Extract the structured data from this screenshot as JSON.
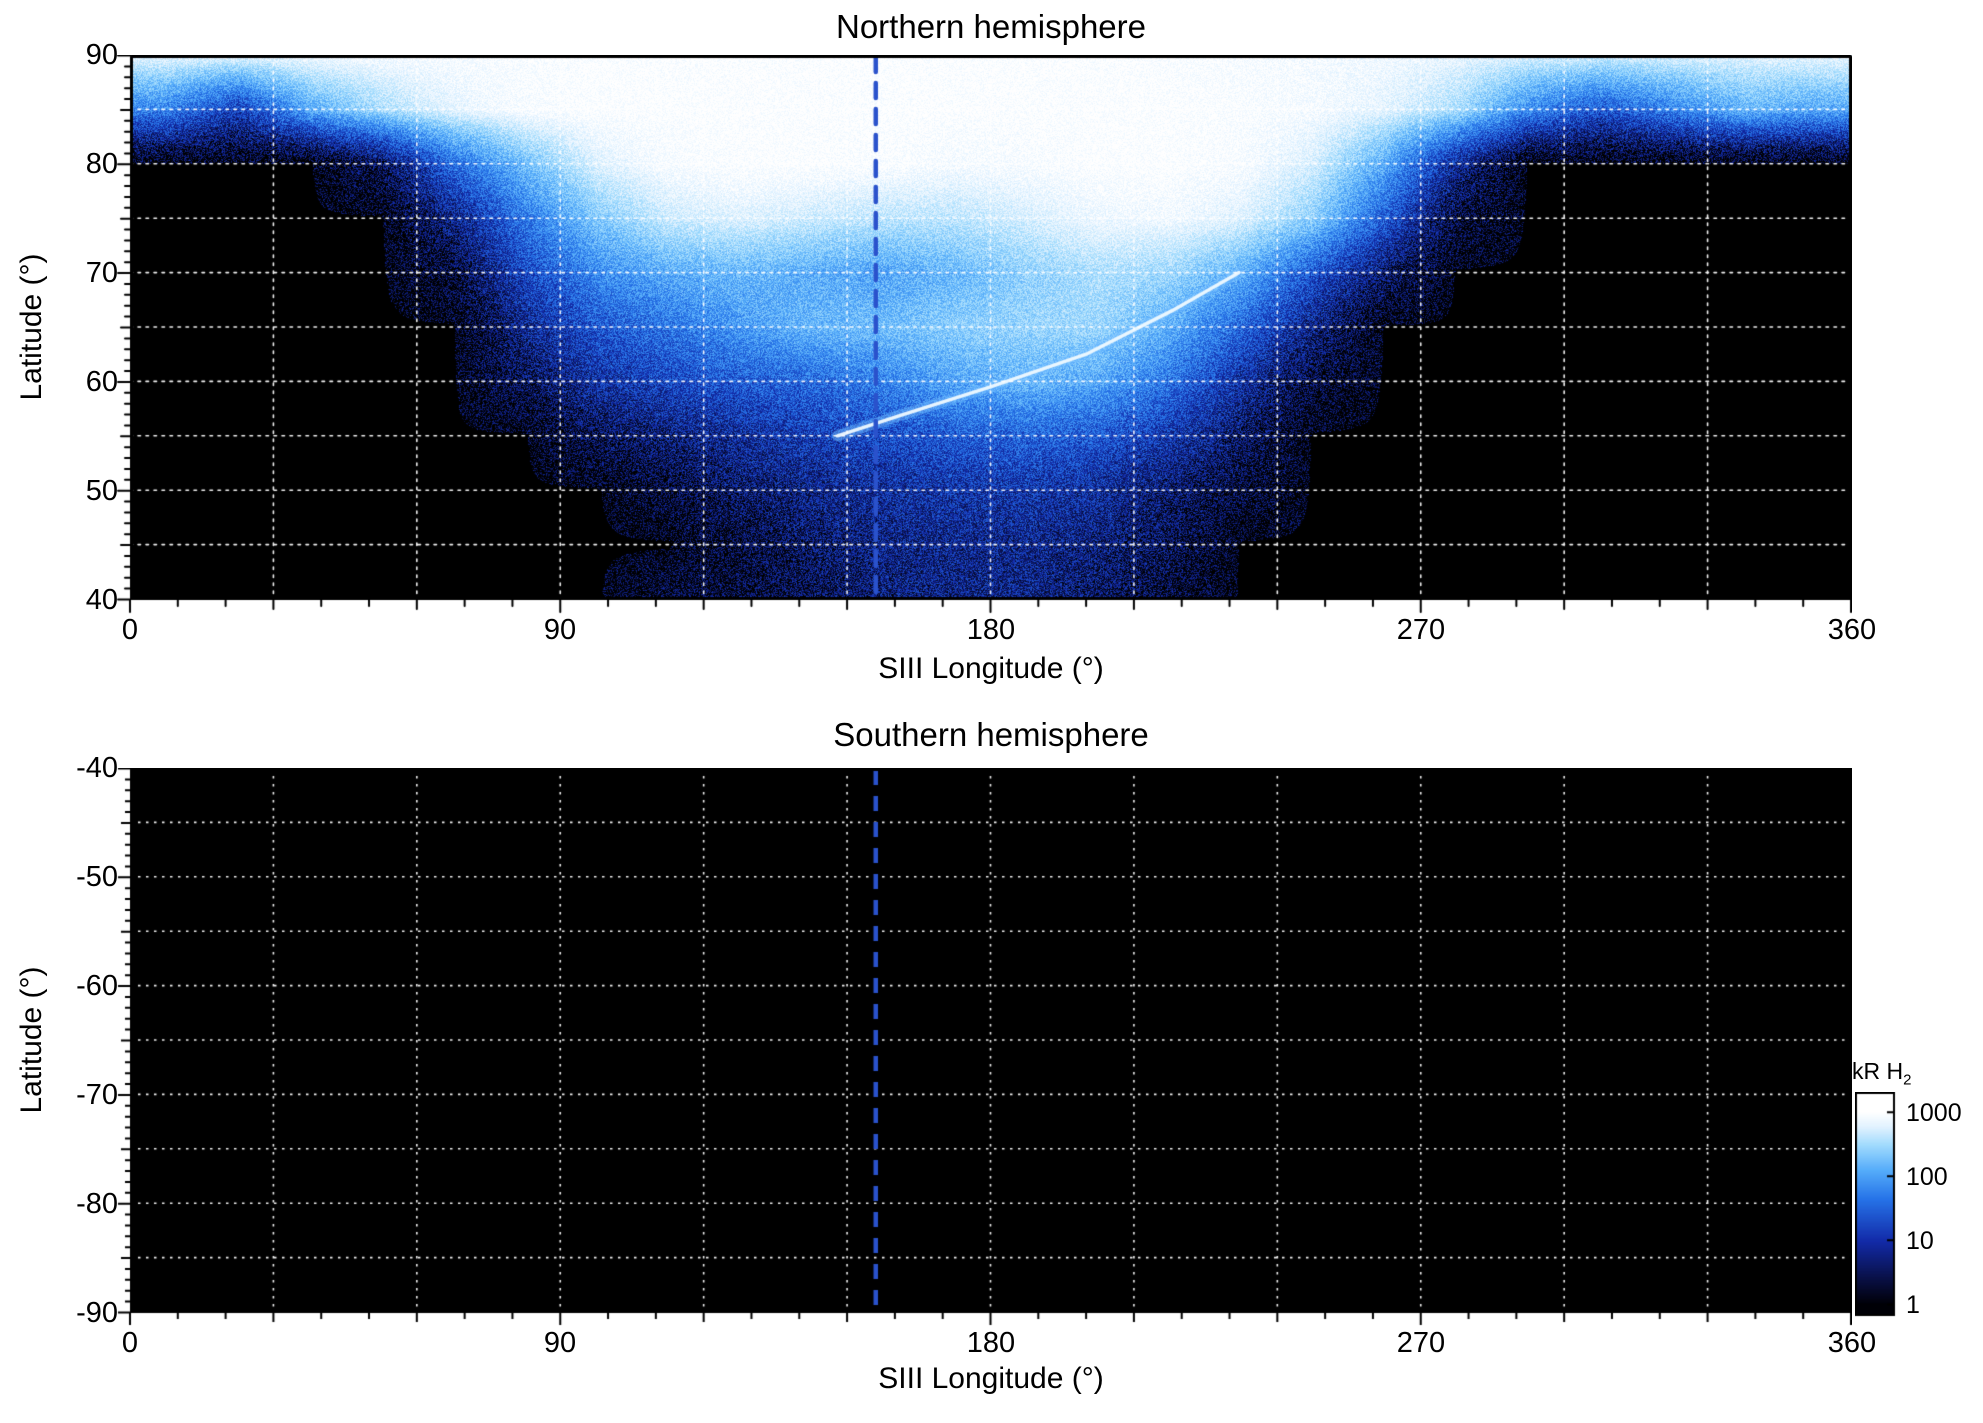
{
  "figure": {
    "background": "#ffffff",
    "text_color": "#000000"
  },
  "chart_data": [
    {
      "id": "northern",
      "type": "heatmap",
      "title": "Northern hemisphere",
      "xlabel": "SIII Longitude (°)",
      "ylabel": "Latitude (°)",
      "xlim": [
        0,
        360
      ],
      "ylim": [
        40,
        90
      ],
      "x_tick_values": [
        0,
        90,
        180,
        270,
        360
      ],
      "x_tick_labels": [
        "0",
        "90",
        "180",
        "270",
        "360"
      ],
      "y_tick_values": [
        90,
        80,
        70,
        60,
        50,
        40
      ],
      "y_tick_labels": [
        "90",
        "80",
        "70",
        "60",
        "50",
        "40"
      ],
      "grid": {
        "x_step_deg": 30,
        "y_step_deg": 5,
        "style": "dotted",
        "color": "#ffffff"
      },
      "marker_longitude": 156,
      "marker_style": {
        "type": "dashed",
        "color": "#2a52cc"
      },
      "lon_bin_centers_deg": [
        7.5,
        22.5,
        37.5,
        52.5,
        67.5,
        82.5,
        97.5,
        112.5,
        127.5,
        142.5,
        157.5,
        172.5,
        187.5,
        202.5,
        217.5,
        232.5,
        247.5,
        262.5,
        277.5,
        292.5,
        307.5,
        322.5,
        337.5,
        352.5
      ],
      "lat_bin_centers_deg": [
        90,
        85,
        80,
        75,
        70,
        65,
        60,
        55,
        50,
        45,
        40
      ],
      "intensity_kR": [
        [
          700,
          700,
          800,
          850,
          900,
          950,
          1000,
          1000,
          1000,
          1000,
          1000,
          1000,
          1000,
          1000,
          950,
          900,
          850,
          800,
          700,
          600,
          550,
          600,
          650,
          700
        ],
        [
          60,
          15,
          120,
          350,
          650,
          900,
          1000,
          1000,
          1000,
          1000,
          1000,
          1000,
          1000,
          1000,
          1000,
          950,
          850,
          650,
          350,
          70,
          25,
          60,
          150,
          120
        ],
        [
          1,
          1,
          1,
          3,
          40,
          180,
          600,
          900,
          1000,
          1000,
          950,
          850,
          900,
          1000,
          1000,
          900,
          550,
          120,
          8,
          1,
          1,
          1,
          1,
          1
        ],
        [
          1,
          1,
          1,
          1,
          6,
          50,
          220,
          500,
          600,
          500,
          420,
          420,
          550,
          750,
          800,
          600,
          250,
          30,
          2,
          1,
          1,
          1,
          1,
          1
        ],
        [
          1,
          1,
          1,
          1,
          2,
          18,
          70,
          130,
          160,
          130,
          110,
          160,
          260,
          360,
          300,
          140,
          25,
          4,
          1,
          1,
          1,
          1,
          1,
          1
        ],
        [
          1,
          1,
          1,
          1,
          1,
          7,
          25,
          45,
          90,
          160,
          180,
          250,
          280,
          300,
          140,
          35,
          6,
          1,
          1,
          1,
          1,
          1,
          1,
          1
        ],
        [
          1,
          1,
          1,
          1,
          1,
          3,
          10,
          18,
          28,
          35,
          60,
          110,
          160,
          120,
          45,
          10,
          2,
          1,
          1,
          1,
          1,
          1,
          1,
          1
        ],
        [
          1,
          1,
          1,
          1,
          1,
          1,
          3,
          5,
          9,
          14,
          20,
          28,
          32,
          26,
          12,
          4,
          1,
          1,
          1,
          1,
          1,
          1,
          1,
          1
        ],
        [
          1,
          1,
          1,
          1,
          1,
          1,
          1,
          2,
          4,
          6,
          9,
          11,
          11,
          9,
          4,
          2,
          1,
          1,
          1,
          1,
          1,
          1,
          1,
          1
        ],
        [
          1,
          1,
          1,
          1,
          1,
          1,
          1,
          1,
          2,
          4,
          6,
          7,
          7,
          5,
          3,
          1,
          1,
          1,
          1,
          1,
          1,
          1,
          1,
          1
        ],
        [
          1,
          1,
          1,
          1,
          1,
          1,
          1,
          2,
          2,
          3,
          5,
          6,
          6,
          4,
          2,
          1,
          1,
          1,
          1,
          1,
          1,
          1,
          1,
          1
        ]
      ],
      "bright_arc": {
        "points_lon_lat": [
          [
            148,
            55
          ],
          [
            162,
            57
          ],
          [
            180,
            59.5
          ],
          [
            200,
            62.5
          ],
          [
            218,
            66.5
          ],
          [
            232,
            70
          ]
        ],
        "intensity_kR": 800
      }
    },
    {
      "id": "southern",
      "type": "heatmap",
      "title": "Southern hemisphere",
      "xlabel": "SIII Longitude (°)",
      "ylabel": "Latitude (°)",
      "xlim": [
        0,
        360
      ],
      "ylim": [
        -90,
        -40
      ],
      "x_tick_values": [
        0,
        90,
        180,
        270,
        360
      ],
      "x_tick_labels": [
        "0",
        "90",
        "180",
        "270",
        "360"
      ],
      "y_tick_values": [
        -40,
        -50,
        -60,
        -70,
        -80,
        -90
      ],
      "y_tick_labels": [
        "-40",
        "-50",
        "-60",
        "-70",
        "-80",
        "-90"
      ],
      "grid": {
        "x_step_deg": 30,
        "y_step_deg": 5,
        "style": "dotted",
        "color": "#ffffff"
      },
      "marker_longitude": 156,
      "marker_style": {
        "type": "dashed",
        "color": "#2a52cc"
      },
      "intensity_kR": [],
      "all_below_1_kR": true
    }
  ],
  "colorbar": {
    "label": "kR H",
    "label_sub": "2",
    "scale": "log",
    "range_kR": [
      1,
      1000
    ],
    "tick_values": [
      1000,
      100,
      10,
      1
    ],
    "tick_labels": [
      "1000",
      "100",
      "10",
      "1"
    ],
    "colors": {
      "1": "#000006",
      "10": "#1a2aa8",
      "100": "#2f9bf0",
      "1000": "#ffffff"
    }
  }
}
